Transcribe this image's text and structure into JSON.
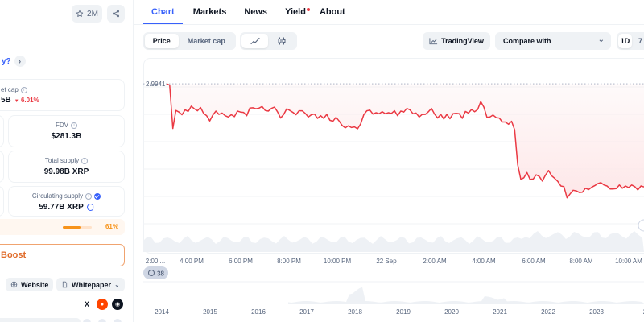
{
  "header": {
    "watchlist_count": "2M"
  },
  "left": {
    "hint_text": "y?",
    "market_cap": {
      "label": "et cap",
      "value": "5B",
      "change": "6.01%"
    },
    "fdv": {
      "label": "FDV",
      "value": "$281.3B"
    },
    "total_supply": {
      "label": "Total supply",
      "value": "99.98B XRP"
    },
    "circulating_supply": {
      "label": "Circulating supply",
      "value": "59.77B XRP"
    },
    "progress": {
      "percent_label": "61%",
      "fraction": 0.61
    },
    "boost_label": "Boost",
    "links": {
      "website": "Website",
      "whitepaper": "Whitepaper"
    },
    "social": [
      "x-icon",
      "reddit-icon",
      "github-icon"
    ]
  },
  "tabs": [
    {
      "label": "Chart",
      "active": true
    },
    {
      "label": "Markets",
      "active": false
    },
    {
      "label": "News",
      "active": false
    },
    {
      "label": "Yield",
      "active": false,
      "dot": true
    },
    {
      "label": "About",
      "active": false
    }
  ],
  "controls": {
    "price": "Price",
    "market_cap": "Market cap",
    "tradingview": "TradingView",
    "compare_placeholder": "Compare with",
    "range_1d": "1D",
    "range_7": "7"
  },
  "chart_data": {
    "type": "line",
    "colors": {
      "line": "#ea3943",
      "fill": "#fde7e8",
      "volume": "#eef1f5",
      "accent": "#3861fb"
    },
    "reference_price": "2.9941",
    "x_labels": [
      "2:00 ...",
      "4:00 PM",
      "6:00 PM",
      "8:00 PM",
      "10:00 PM",
      "22 Sep",
      "2:00 AM",
      "4:00 AM",
      "6:00 AM",
      "8:00 AM",
      "10:00 AM"
    ],
    "series": [
      {
        "values": [
          2.9941,
          2.9937,
          2.9805,
          2.986,
          2.9855,
          2.9847,
          2.9862,
          2.9857,
          2.9873,
          2.9865,
          2.9859,
          2.9869,
          2.9851,
          2.9844,
          2.9828,
          2.9846,
          2.9858,
          2.9848,
          2.9852,
          2.9844,
          2.984,
          2.9847,
          2.9841,
          2.9858,
          2.9855,
          2.9854,
          2.9844,
          2.9867,
          2.9868,
          2.9865,
          2.9867,
          2.9872,
          2.986,
          2.9858,
          2.9866,
          2.987,
          2.9856,
          2.9837,
          2.9848,
          2.9865,
          2.986,
          2.9854,
          2.9847,
          2.9859,
          2.9859,
          2.9851,
          2.984,
          2.9847,
          2.9849,
          2.9836,
          2.9844,
          2.9836,
          2.9848,
          2.983,
          2.9827,
          2.9839,
          2.9828,
          2.9814,
          2.9807,
          2.9813,
          2.9808,
          2.981,
          2.9804,
          2.9819,
          2.9847,
          2.9859,
          2.9861,
          2.9849,
          2.9853,
          2.985,
          2.9856,
          2.985,
          2.9853,
          2.9851,
          2.9859,
          2.9844,
          2.9858,
          2.9855,
          2.9866,
          2.9862,
          2.985,
          2.9852,
          2.984,
          2.9848,
          2.9848,
          2.9856,
          2.9866,
          2.9849,
          2.9837,
          2.9848,
          2.9834,
          2.9848,
          2.9835,
          2.985,
          2.9851,
          2.985,
          2.9836,
          2.9857,
          2.9852,
          2.9863,
          2.9856,
          2.9863,
          2.9887,
          2.987,
          2.9839,
          2.984,
          2.9846,
          2.9838,
          2.9837,
          2.9825,
          2.9825,
          2.9818,
          2.9827,
          2.9801,
          2.9695,
          2.965,
          2.9655,
          2.9671,
          2.965,
          2.9651,
          2.9664,
          2.9659,
          2.9645,
          2.9663,
          2.9677,
          2.9661,
          2.9653,
          2.9644,
          2.963,
          2.9628,
          2.9594,
          2.9606,
          2.9617,
          2.9615,
          2.961,
          2.9611,
          2.9623,
          2.9619,
          2.9626,
          2.9631,
          2.9637,
          2.964,
          2.9633,
          2.963,
          2.9621,
          2.9621,
          2.9622,
          2.9633,
          2.9623,
          2.963,
          2.9625,
          2.9633,
          2.9628,
          2.9618,
          2.963,
          2.9627
        ]
      }
    ],
    "volume_badge": "38",
    "navigator_years": [
      "2014",
      "2015",
      "2016",
      "2017",
      "2018",
      "2019",
      "2020",
      "2021",
      "2022",
      "2023",
      "2"
    ]
  }
}
